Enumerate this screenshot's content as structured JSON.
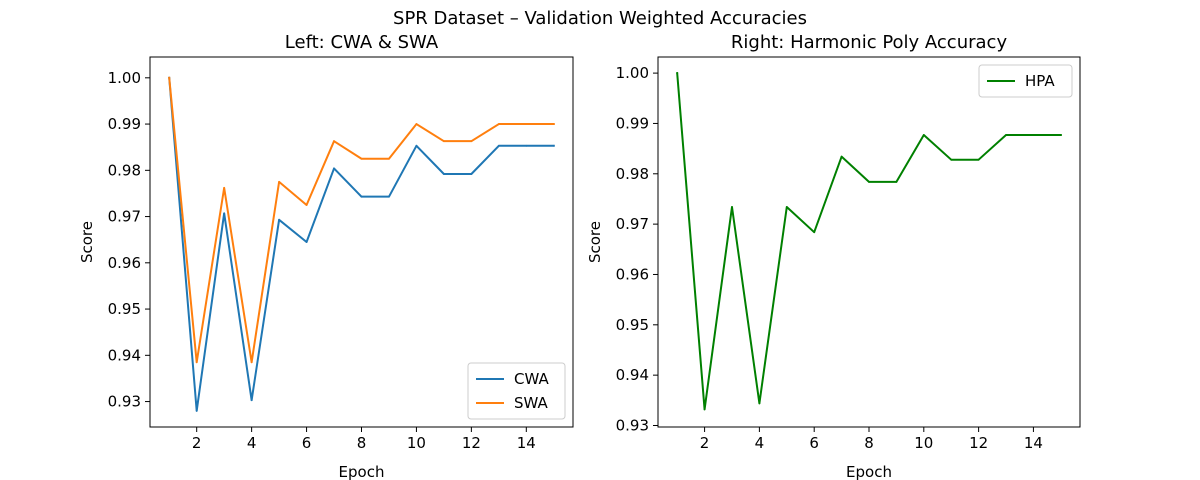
{
  "figure": {
    "suptitle": "SPR Dataset – Validation Weighted Accuracies"
  },
  "chart_data": [
    {
      "type": "line",
      "title": "Left: CWA & SWA",
      "xlabel": "Epoch",
      "ylabel": "Score",
      "x": [
        1,
        2,
        3,
        4,
        5,
        6,
        7,
        8,
        9,
        10,
        11,
        12,
        13,
        14,
        15
      ],
      "xlim": [
        0.3,
        15.7
      ],
      "ylim": [
        0.9245,
        1.0045
      ],
      "xticks": [
        2,
        4,
        6,
        8,
        10,
        12,
        14
      ],
      "yticks": [
        0.93,
        0.94,
        0.95,
        0.96,
        0.97,
        0.98,
        0.99,
        1.0
      ],
      "ytick_labels": [
        "0.93",
        "0.94",
        "0.95",
        "0.96",
        "0.97",
        "0.98",
        "0.99",
        "1.00"
      ],
      "legend": "bottom-right",
      "series": [
        {
          "name": "CWA",
          "color": "#1f77b4",
          "values": [
            1.0,
            0.928,
            0.9707,
            0.9303,
            0.9693,
            0.9645,
            0.9804,
            0.9743,
            0.9743,
            0.9853,
            0.9792,
            0.9792,
            0.9853,
            0.9853,
            0.9853
          ]
        },
        {
          "name": "SWA",
          "color": "#ff7f0e",
          "values": [
            1.0,
            0.9385,
            0.9762,
            0.9385,
            0.9775,
            0.9725,
            0.9863,
            0.9825,
            0.9825,
            0.99,
            0.9863,
            0.9863,
            0.99,
            0.99,
            0.99
          ]
        }
      ]
    },
    {
      "type": "line",
      "title": "Right: Harmonic Poly Accuracy",
      "xlabel": "Epoch",
      "ylabel": "Score",
      "x": [
        1,
        2,
        3,
        4,
        5,
        6,
        7,
        8,
        9,
        10,
        11,
        12,
        13,
        14,
        15
      ],
      "xlim": [
        0.3,
        15.7
      ],
      "ylim": [
        0.9297,
        1.0032
      ],
      "xticks": [
        2,
        4,
        6,
        8,
        10,
        12,
        14
      ],
      "yticks": [
        0.93,
        0.94,
        0.95,
        0.96,
        0.97,
        0.98,
        0.99,
        1.0
      ],
      "ytick_labels": [
        "0.93",
        "0.94",
        "0.95",
        "0.96",
        "0.97",
        "0.98",
        "0.99",
        "1.00"
      ],
      "legend": "top-right",
      "series": [
        {
          "name": "HPA",
          "color": "#008000",
          "values": [
            1.0,
            0.9332,
            0.9734,
            0.9344,
            0.9734,
            0.9684,
            0.9834,
            0.9784,
            0.9784,
            0.9877,
            0.9828,
            0.9828,
            0.9877,
            0.9877,
            0.9877
          ]
        }
      ]
    }
  ]
}
